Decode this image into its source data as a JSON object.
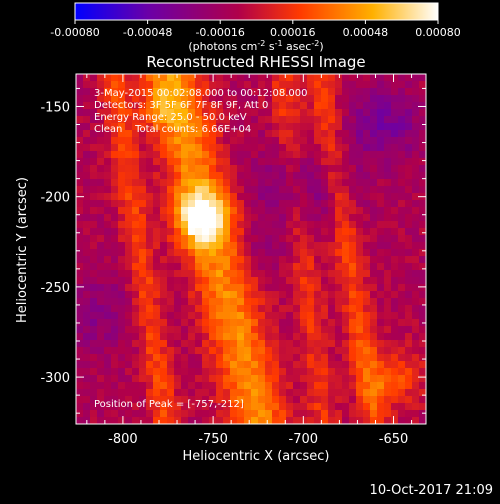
{
  "colorbar": {
    "ticks": [
      "-0.00080",
      "-0.00048",
      "-0.00016",
      "0.00016",
      "0.00048",
      "0.00080"
    ],
    "tick_values": [
      -0.0008,
      -0.00048,
      -0.00016,
      0.00016,
      0.00048,
      0.0008
    ],
    "range": [
      -0.0008,
      0.0008
    ],
    "units_parts": [
      "(photons cm",
      "-2",
      " s",
      "-1",
      " asec",
      "-2",
      ")"
    ],
    "colors": [
      "#0000ff",
      "#6a00a8",
      "#b0004a",
      "#ff3a00",
      "#ffb000",
      "#ffffff"
    ]
  },
  "chart_data": {
    "type": "heatmap",
    "title": "Reconstructed RHESSI Image",
    "xlabel": "Heliocentric X (arcsec)",
    "ylabel": "Heliocentric Y (arcsec)",
    "xlim": [
      -826,
      -632
    ],
    "ylim": [
      -326,
      -132
    ],
    "xticks": [
      -800,
      -750,
      -700,
      -650
    ],
    "yticks": [
      -150,
      -200,
      -250,
      -300
    ],
    "xtick_labels": [
      "-800",
      "-750",
      "-700",
      "-650"
    ],
    "ytick_labels": [
      "-150",
      "-200",
      "-250",
      "-300"
    ],
    "annotations": [
      "3-May-2015 00:02:08.000 to 00:12:08.000",
      "Detectors: 3F 5F 6F 7F 8F 9F, Att 0",
      "Energy Range: 25.0 - 50.0 keV",
      "Clean    Total counts: 6.66E+04"
    ],
    "peak_label": "Position of Peak = [-757,-212]",
    "peak": {
      "x": -757,
      "y": -212
    },
    "intensity_range": [
      -0.0008,
      0.0008
    ],
    "ridges": [
      {
        "x_top": -774,
        "x_bottom": -724,
        "width": 12,
        "amp": 0.0005
      },
      {
        "x_top": -806,
        "x_bottom": -776,
        "width": 6,
        "amp": 0.0003
      },
      {
        "x_top": -712,
        "x_bottom": -688,
        "width": 6,
        "amp": 0.00024
      },
      {
        "x_top": -692,
        "x_bottom": -660,
        "width": 6,
        "amp": 0.0003
      }
    ],
    "peaks": [
      {
        "x": -757,
        "y": -212,
        "sigma": 10,
        "amp": 0.0007
      },
      {
        "x": -778,
        "y": -150,
        "sigma": 9,
        "amp": 0.00025
      },
      {
        "x": -650,
        "y": -300,
        "sigma": 12,
        "amp": 0.00032
      }
    ],
    "dips": [
      {
        "x": -700,
        "y": -195,
        "sigma": 18,
        "amp": -0.00028
      },
      {
        "x": -655,
        "y": -160,
        "sigma": 14,
        "amp": -0.0003
      },
      {
        "x": -815,
        "y": -265,
        "sigma": 16,
        "amp": -0.00018
      },
      {
        "x": -725,
        "y": -230,
        "sigma": 10,
        "amp": -0.00012
      }
    ]
  },
  "footer": {
    "timestamp": "10-Oct-2017 21:09"
  }
}
